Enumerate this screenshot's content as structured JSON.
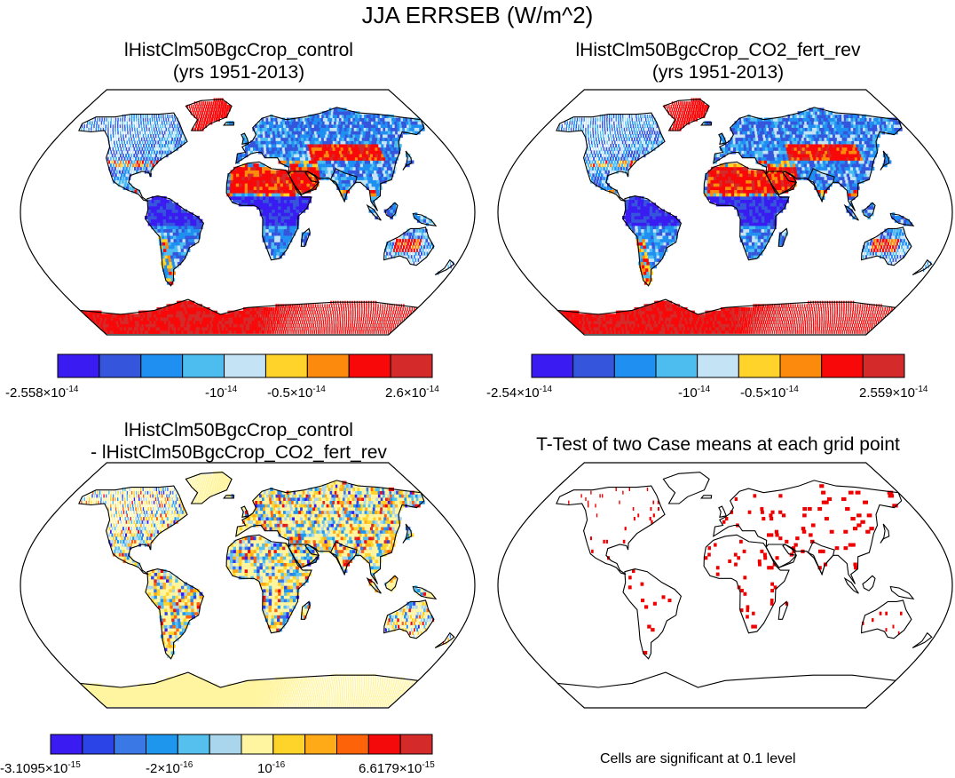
{
  "title": "JJA ERRSEB (W/m^2)",
  "panels": [
    {
      "id": "control",
      "title_lines": [
        "lHistClm50BgcCrop_control",
        "(yrs 1951-2013)"
      ],
      "colorbar": {
        "colors": [
          "#3a1cf2",
          "#3556dc",
          "#1f8ff2",
          "#4dbdf0",
          "#c4e4f5",
          "#ffd32a",
          "#fc8a0c",
          "#f80808",
          "#d42a2a"
        ],
        "labels": [
          {
            "base": "-2.558×10",
            "exp": "-14"
          },
          {
            "base": "-10",
            "exp": "-14"
          },
          {
            "base": "-0.5×10",
            "exp": "-14"
          },
          {
            "base": "2.6×10",
            "exp": "-14"
          }
        ]
      }
    },
    {
      "id": "co2_fert_rev",
      "title_lines": [
        "lHistClm50BgcCrop_CO2_fert_rev",
        "(yrs 1951-2013)"
      ],
      "colorbar": {
        "colors": [
          "#3a1cf2",
          "#3556dc",
          "#1f8ff2",
          "#4dbdf0",
          "#c4e4f5",
          "#ffd32a",
          "#fc8a0c",
          "#f80808",
          "#d42a2a"
        ],
        "labels": [
          {
            "base": "-2.54×10",
            "exp": "-14"
          },
          {
            "base": "-10",
            "exp": "-14"
          },
          {
            "base": "-0.5×10",
            "exp": "-14"
          },
          {
            "base": "2.559×10",
            "exp": "-14"
          }
        ]
      }
    },
    {
      "id": "difference",
      "title_lines": [
        "lHistClm50BgcCrop_control",
        "- lHistClm50BgcCrop_CO2_fert_rev"
      ],
      "colorbar": {
        "colors": [
          "#3a1cf2",
          "#2a44e8",
          "#3a78e6",
          "#1e96ee",
          "#55c0ee",
          "#a9d6ec",
          "#fff5a0",
          "#ffd42a",
          "#ffaa16",
          "#fd640a",
          "#f40a0a",
          "#d42a2a"
        ],
        "labels": [
          {
            "base": "-3.1095×10",
            "exp": "-15"
          },
          {
            "base": "-2×10",
            "exp": "-16"
          },
          {
            "base": "10",
            "exp": "-16"
          },
          {
            "base": "6.6179×10",
            "exp": "-15"
          }
        ]
      }
    },
    {
      "id": "ttest",
      "title_lines": [
        "T-Test of two Case means at each grid point"
      ],
      "note": "Cells are significant at 0.1 level"
    }
  ]
}
